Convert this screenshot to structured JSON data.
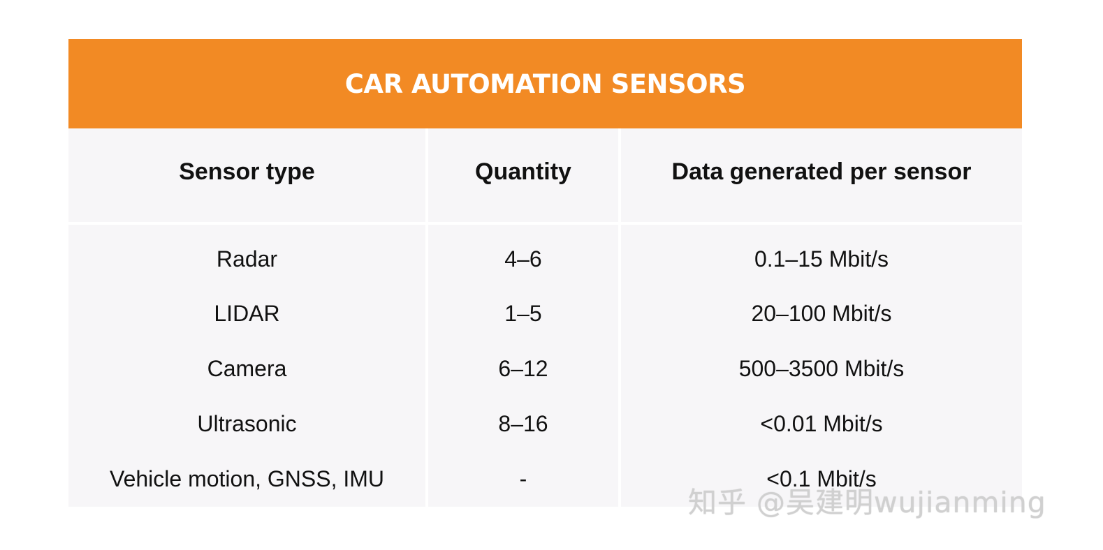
{
  "title": "CAR AUTOMATION SENSORS",
  "headers": {
    "sensor_type": "Sensor type",
    "quantity": "Quantity",
    "data_generated": "Data generated per sensor"
  },
  "rows": [
    {
      "sensor": "Radar",
      "quantity": "4–6",
      "data": "0.1–15 Mbit/s"
    },
    {
      "sensor": "LIDAR",
      "quantity": "1–5",
      "data": "20–100 Mbit/s"
    },
    {
      "sensor": "Camera",
      "quantity": "6–12",
      "data": "500–3500 Mbit/s"
    },
    {
      "sensor": "Ultrasonic",
      "quantity": "8–16",
      "data": "<0.01 Mbit/s"
    },
    {
      "sensor": "Vehicle motion, GNSS, IMU",
      "quantity": "-",
      "data": "<0.1 Mbit/s"
    }
  ],
  "watermark": "知乎 @吴建明wujianming",
  "colors": {
    "title_bg": "#f28a24",
    "table_bg": "#f7f6f8"
  }
}
